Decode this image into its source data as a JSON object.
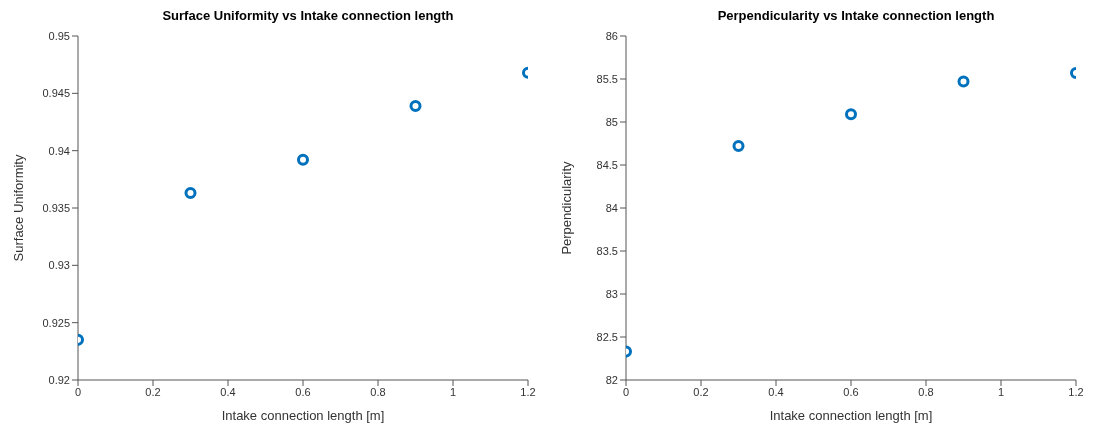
{
  "chart_data": [
    {
      "type": "scatter",
      "title": "Surface Uniformity vs Intake connection length",
      "xlabel": "Intake connection length [m]",
      "ylabel": "Surface Uniformity",
      "x": [
        0,
        0.3,
        0.6,
        0.9,
        1.2
      ],
      "values": [
        0.9235,
        0.9363,
        0.9392,
        0.9439,
        0.9468
      ],
      "color": "#0072bd",
      "marker": "circle",
      "xlim": [
        0,
        1.2
      ],
      "xticks": [
        0,
        0.2,
        0.4,
        0.6,
        0.8,
        1,
        1.2
      ],
      "ylim": [
        0.92,
        0.95
      ],
      "yticks": [
        0.92,
        0.925,
        0.93,
        0.935,
        0.94,
        0.945,
        0.95
      ]
    },
    {
      "type": "scatter",
      "title": "Perpendicularity vs Intake connection length",
      "xlabel": "Intake connection length [m]",
      "ylabel": "Perpendicularity",
      "x": [
        0,
        0.3,
        0.6,
        0.9,
        1.2
      ],
      "values": [
        82.33,
        84.72,
        85.09,
        85.47,
        85.57
      ],
      "color": "#0072bd",
      "marker": "circle",
      "xlim": [
        0,
        1.2
      ],
      "xticks": [
        0,
        0.2,
        0.4,
        0.6,
        0.8,
        1,
        1.2
      ],
      "ylim": [
        82,
        86
      ],
      "yticks": [
        82,
        82.5,
        83,
        83.5,
        84,
        84.5,
        85,
        85.5,
        86
      ]
    }
  ]
}
